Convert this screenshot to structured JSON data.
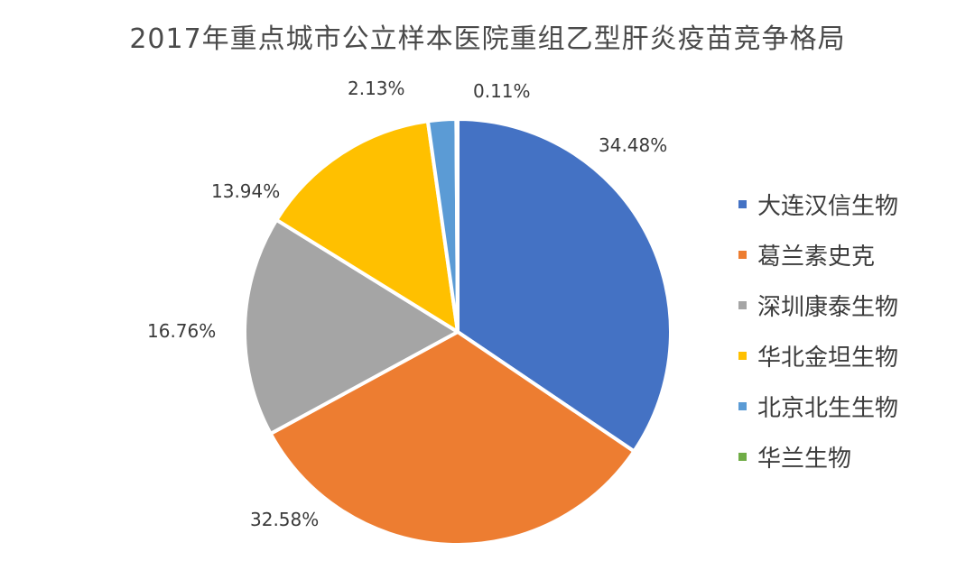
{
  "chart_data": {
    "type": "pie",
    "title": "2017年重点城市公立样本医院重组乙型肝炎疫苗竞争格局",
    "legend_position": "right",
    "slices": [
      {
        "name": "大连汉信生物",
        "value": 34.48,
        "label": "34.48%",
        "color": "#4472C4"
      },
      {
        "name": "葛兰素史克",
        "value": 32.58,
        "label": "32.58%",
        "color": "#ED7D31"
      },
      {
        "name": "深圳康泰生物",
        "value": 16.76,
        "label": "16.76%",
        "color": "#A5A5A5"
      },
      {
        "name": "华北金坦生物",
        "value": 13.94,
        "label": "13.94%",
        "color": "#FFC000"
      },
      {
        "name": "北京北生生物",
        "value": 2.13,
        "label": "2.13%",
        "color": "#5B9BD5"
      },
      {
        "name": "华兰生物",
        "value": 0.11,
        "label": "0.11%",
        "color": "#70AD47"
      }
    ]
  }
}
